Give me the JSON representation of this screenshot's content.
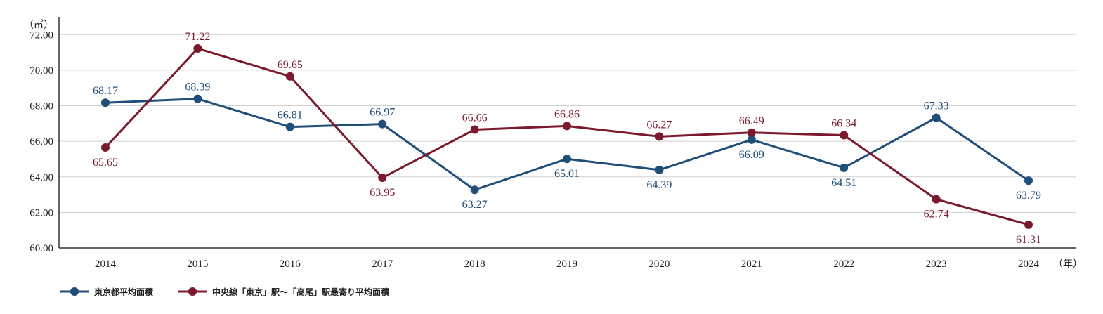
{
  "chart_data": {
    "type": "line",
    "categories": [
      "2014",
      "2015",
      "2016",
      "2017",
      "2018",
      "2019",
      "2020",
      "2021",
      "2022",
      "2023",
      "2024"
    ],
    "series": [
      {
        "name": "東京都平均面積",
        "color": "#1f4e79",
        "values": [
          68.17,
          68.39,
          66.81,
          66.97,
          63.27,
          65.01,
          64.39,
          66.09,
          64.51,
          67.33,
          63.79
        ],
        "labels": [
          "68.17",
          "68.39",
          "66.81",
          "66.97",
          "63.27",
          "65.01",
          "64.39",
          "66.09",
          "64.51",
          "67.33",
          "63.79"
        ],
        "label_side": [
          "above",
          "above",
          "above",
          "above",
          "below",
          "below",
          "below",
          "below",
          "below",
          "above",
          "below"
        ]
      },
      {
        "name": "中央線「東京」駅〜「高尾」駅最寄り平均面積",
        "color": "#7b1a2c",
        "values": [
          65.65,
          71.22,
          69.65,
          63.95,
          66.66,
          66.86,
          66.27,
          66.49,
          66.34,
          62.74,
          61.31
        ],
        "labels": [
          "65.65",
          "71.22",
          "69.65",
          "63.95",
          "66.66",
          "66.86",
          "66.27",
          "66.49",
          "66.34",
          "62.74",
          "61.31"
        ],
        "label_side": [
          "below",
          "above",
          "above",
          "below",
          "above",
          "above",
          "above",
          "above",
          "above",
          "below",
          "below"
        ]
      }
    ],
    "y_unit": "（㎡）",
    "x_unit": "（年）",
    "ylim": [
      60,
      73
    ],
    "yticks": [
      60,
      62,
      64,
      66,
      68,
      70,
      72
    ],
    "ytick_labels": [
      "60.00",
      "62.00",
      "64.00",
      "66.00",
      "68.00",
      "70.00",
      "72.00"
    ],
    "grid": true,
    "legend_position": "bottom-left"
  }
}
